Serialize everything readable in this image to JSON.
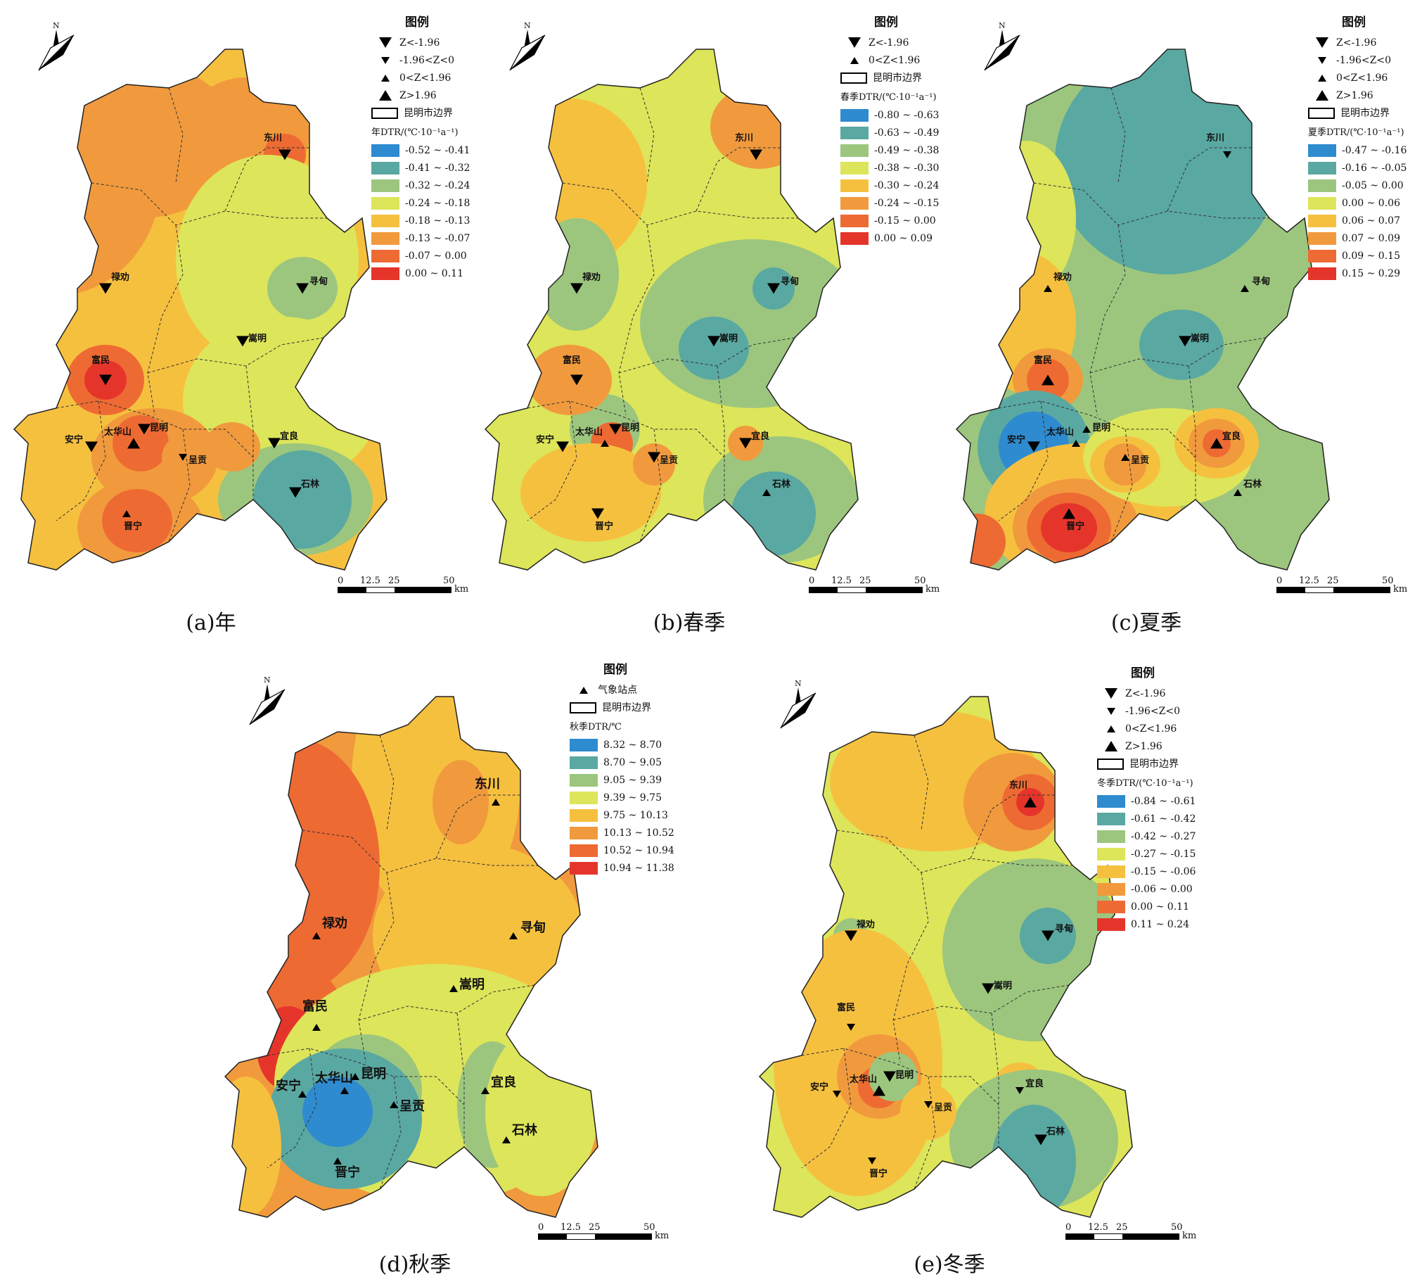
{
  "common": {
    "legend_title": "图例",
    "boundary_label": "昆明市边界",
    "north_label": "N",
    "scale_ticks": [
      "0",
      "12.5",
      "25",
      "50"
    ],
    "scale_unit": "km",
    "symbol_labels": {
      "z_lt_neg196": "Z<-1.96",
      "neg196_z_0": "-1.96<Z<0",
      "z_0_196": "0<Z<1.96",
      "z_gt_196": "Z>1.96"
    }
  },
  "panels": [
    {
      "caption": "(a)年",
      "ramp_title": "年DTR/(℃·10⁻¹a⁻¹)",
      "symbols": [
        "z_lt_neg196",
        "neg196_z_0",
        "z_0_196",
        "z_gt_196"
      ],
      "classes": [
        {
          "label": "-0.52 ~ -0.41",
          "color": "#2e8bd0"
        },
        {
          "label": "-0.41 ~ -0.32",
          "color": "#5aa8a2"
        },
        {
          "label": "-0.32 ~ -0.24",
          "color": "#9cc67e"
        },
        {
          "label": "-0.24 ~ -0.18",
          "color": "#dde55a"
        },
        {
          "label": "-0.18 ~ -0.13",
          "color": "#f6c03f"
        },
        {
          "label": "-0.13 ~ -0.07",
          "color": "#f19a3d"
        },
        {
          "label": "-0.07 ~ 0.00",
          "color": "#ee6a33"
        },
        {
          "label": "0.00 ~ 0.11",
          "color": "#e5352b"
        }
      ],
      "base_color": "#f6c03f",
      "stations": [
        {
          "name": "东川",
          "sym": "down_big"
        },
        {
          "name": "禄劝",
          "sym": "down_big"
        },
        {
          "name": "寻甸",
          "sym": "down_big"
        },
        {
          "name": "嵩明",
          "sym": "down_big"
        },
        {
          "name": "富民",
          "sym": "down_big"
        },
        {
          "name": "昆明",
          "sym": "down_big"
        },
        {
          "name": "太华山",
          "sym": "up_big"
        },
        {
          "name": "安宁",
          "sym": "down_big"
        },
        {
          "name": "呈贡",
          "sym": "down_small"
        },
        {
          "name": "宜良",
          "sym": "down_big"
        },
        {
          "name": "石林",
          "sym": "down_big"
        },
        {
          "name": "晋宁",
          "sym": "up_small"
        }
      ]
    },
    {
      "caption": "(b)春季",
      "ramp_title": "春季DTR/(℃·10⁻¹a⁻¹)",
      "symbols": [
        "z_lt_neg196",
        "z_0_196"
      ],
      "classes": [
        {
          "label": "-0.80 ~ -0.63",
          "color": "#2e8bd0"
        },
        {
          "label": "-0.63 ~ -0.49",
          "color": "#5aa8a2"
        },
        {
          "label": "-0.49 ~ -0.38",
          "color": "#9cc67e"
        },
        {
          "label": "-0.38 ~ -0.30",
          "color": "#dde55a"
        },
        {
          "label": "-0.30 ~ -0.24",
          "color": "#f6c03f"
        },
        {
          "label": "-0.24 ~ -0.15",
          "color": "#f19a3d"
        },
        {
          "label": "-0.15 ~ 0.00",
          "color": "#ee6a33"
        },
        {
          "label": "0.00 ~ 0.09",
          "color": "#e5352b"
        }
      ],
      "base_color": "#dde55a",
      "stations": [
        {
          "name": "东川",
          "sym": "down_big"
        },
        {
          "name": "禄劝",
          "sym": "down_big"
        },
        {
          "name": "寻甸",
          "sym": "down_big"
        },
        {
          "name": "嵩明",
          "sym": "down_big"
        },
        {
          "name": "富民",
          "sym": "down_big"
        },
        {
          "name": "昆明",
          "sym": "down_big"
        },
        {
          "name": "太华山",
          "sym": "up_small"
        },
        {
          "name": "安宁",
          "sym": "down_big"
        },
        {
          "name": "呈贡",
          "sym": "down_big"
        },
        {
          "name": "宜良",
          "sym": "down_big"
        },
        {
          "name": "石林",
          "sym": "up_small"
        },
        {
          "name": "晋宁",
          "sym": "down_big"
        }
      ]
    },
    {
      "caption": "(c)夏季",
      "ramp_title": "夏季DTR/(℃·10⁻¹a⁻¹)",
      "symbols": [
        "z_lt_neg196",
        "neg196_z_0",
        "z_0_196",
        "z_gt_196"
      ],
      "classes": [
        {
          "label": "-0.47 ~ -0.16",
          "color": "#2e8bd0"
        },
        {
          "label": "-0.16 ~ -0.05",
          "color": "#5aa8a2"
        },
        {
          "label": "-0.05 ~ 0.00",
          "color": "#9cc67e"
        },
        {
          "label": "0.00 ~ 0.06",
          "color": "#dde55a"
        },
        {
          "label": "0.06 ~ 0.07",
          "color": "#f6c03f"
        },
        {
          "label": "0.07 ~ 0.09",
          "color": "#f19a3d"
        },
        {
          "label": "0.09 ~ 0.15",
          "color": "#ee6a33"
        },
        {
          "label": "0.15 ~ 0.29",
          "color": "#e5352b"
        }
      ],
      "base_color": "#9cc67e",
      "stations": [
        {
          "name": "东川",
          "sym": "down_small"
        },
        {
          "name": "禄劝",
          "sym": "up_small"
        },
        {
          "name": "寻甸",
          "sym": "up_small"
        },
        {
          "name": "嵩明",
          "sym": "down_big"
        },
        {
          "name": "富民",
          "sym": "up_big"
        },
        {
          "name": "昆明",
          "sym": "up_small"
        },
        {
          "name": "太华山",
          "sym": "up_small"
        },
        {
          "name": "安宁",
          "sym": "down_big"
        },
        {
          "name": "呈贡",
          "sym": "up_small"
        },
        {
          "name": "宜良",
          "sym": "up_big"
        },
        {
          "name": "石林",
          "sym": "up_small"
        },
        {
          "name": "晋宁",
          "sym": "up_big"
        }
      ]
    },
    {
      "caption": "(d)秋季",
      "ramp_title": "秋季DTR/℃",
      "station_symbol_label": "气象站点",
      "symbols": [],
      "classes": [
        {
          "label": "8.32 ~ 8.70",
          "color": "#2e8bd0"
        },
        {
          "label": "8.70 ~ 9.05",
          "color": "#5aa8a2"
        },
        {
          "label": "9.05 ~ 9.39",
          "color": "#9cc67e"
        },
        {
          "label": "9.39 ~ 9.75",
          "color": "#dde55a"
        },
        {
          "label": "9.75 ~ 10.13",
          "color": "#f6c03f"
        },
        {
          "label": "10.13 ~ 10.52",
          "color": "#f19a3d"
        },
        {
          "label": "10.52 ~ 10.94",
          "color": "#ee6a33"
        },
        {
          "label": "10.94 ~ 11.38",
          "color": "#e5352b"
        }
      ],
      "base_color": "#f19a3d",
      "stations": [
        {
          "name": "东川",
          "sym": "up_small"
        },
        {
          "name": "禄劝",
          "sym": "up_small"
        },
        {
          "name": "寻甸",
          "sym": "up_small"
        },
        {
          "name": "嵩明",
          "sym": "up_small"
        },
        {
          "name": "富民",
          "sym": "up_small"
        },
        {
          "name": "昆明",
          "sym": "up_small"
        },
        {
          "name": "太华山",
          "sym": "up_small"
        },
        {
          "name": "安宁",
          "sym": "up_small"
        },
        {
          "name": "呈贡",
          "sym": "up_small"
        },
        {
          "name": "宜良",
          "sym": "up_small"
        },
        {
          "name": "石林",
          "sym": "up_small"
        },
        {
          "name": "晋宁",
          "sym": "up_small"
        }
      ]
    },
    {
      "caption": "(e)冬季",
      "ramp_title": "冬季DTR/(℃·10⁻¹a⁻¹)",
      "symbols": [
        "z_lt_neg196",
        "neg196_z_0",
        "z_0_196",
        "z_gt_196"
      ],
      "classes": [
        {
          "label": "-0.84 ~ -0.61",
          "color": "#2e8bd0"
        },
        {
          "label": "-0.61 ~ -0.42",
          "color": "#5aa8a2"
        },
        {
          "label": "-0.42 ~ -0.27",
          "color": "#9cc67e"
        },
        {
          "label": "-0.27 ~ -0.15",
          "color": "#dde55a"
        },
        {
          "label": "-0.15 ~ -0.06",
          "color": "#f6c03f"
        },
        {
          "label": "-0.06 ~ 0.00",
          "color": "#f19a3d"
        },
        {
          "label": "0.00 ~ 0.11",
          "color": "#ee6a33"
        },
        {
          "label": "0.11 ~ 0.24",
          "color": "#e5352b"
        }
      ],
      "base_color": "#dde55a",
      "stations": [
        {
          "name": "东川",
          "sym": "up_big"
        },
        {
          "name": "禄劝",
          "sym": "down_big"
        },
        {
          "name": "寻甸",
          "sym": "down_big"
        },
        {
          "name": "嵩明",
          "sym": "down_big"
        },
        {
          "name": "富民",
          "sym": "down_small"
        },
        {
          "name": "昆明",
          "sym": "down_big"
        },
        {
          "name": "太华山",
          "sym": "up_big"
        },
        {
          "name": "安宁",
          "sym": "down_small"
        },
        {
          "name": "呈贡",
          "sym": "down_small"
        },
        {
          "name": "宜良",
          "sym": "down_small"
        },
        {
          "name": "石林",
          "sym": "down_big"
        },
        {
          "name": "晋宁",
          "sym": "down_small"
        }
      ]
    }
  ]
}
